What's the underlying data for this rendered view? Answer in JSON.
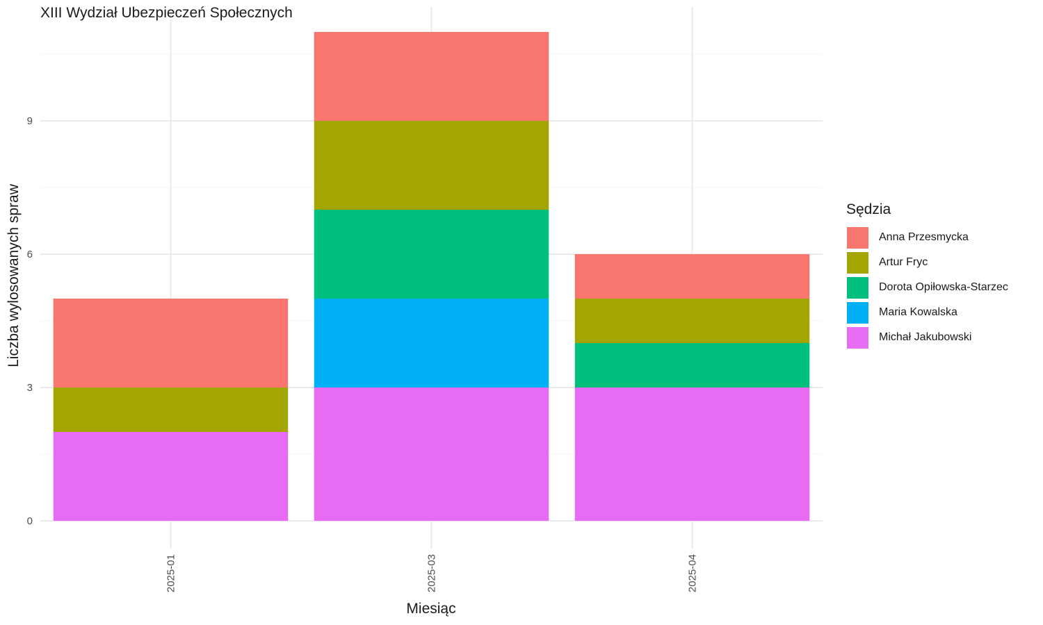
{
  "chart_data": {
    "type": "bar",
    "stacked": true,
    "title": "XIII Wydział Ubezpieczeń Społecznych",
    "xlabel": "Miesiąc",
    "ylabel": "Liczba wylosowanych spraw",
    "categories": [
      "2025-01",
      "2025-03",
      "2025-04"
    ],
    "ylim": [
      0,
      11
    ],
    "yticks": [
      0,
      3,
      6,
      9
    ],
    "grid": true,
    "legend_title": "Sędzia",
    "legend_position": "right",
    "series": [
      {
        "name": "Michał Jakubowski",
        "color": "#E76BF3",
        "values": [
          2,
          3,
          3
        ]
      },
      {
        "name": "Maria Kowalska",
        "color": "#00B0F6",
        "values": [
          0,
          2,
          0
        ]
      },
      {
        "name": "Dorota Opiłowska-Starzec",
        "color": "#00BF7D",
        "values": [
          0,
          2,
          1
        ]
      },
      {
        "name": "Artur Fryc",
        "color": "#A3A500",
        "values": [
          1,
          2,
          1
        ]
      },
      {
        "name": "Anna Przesmycka",
        "color": "#F8766D",
        "values": [
          2,
          2,
          1
        ]
      }
    ],
    "legend_order": [
      "Anna Przesmycka",
      "Artur Fryc",
      "Dorota Opiłowska-Starzec",
      "Maria Kowalska",
      "Michał Jakubowski"
    ]
  }
}
